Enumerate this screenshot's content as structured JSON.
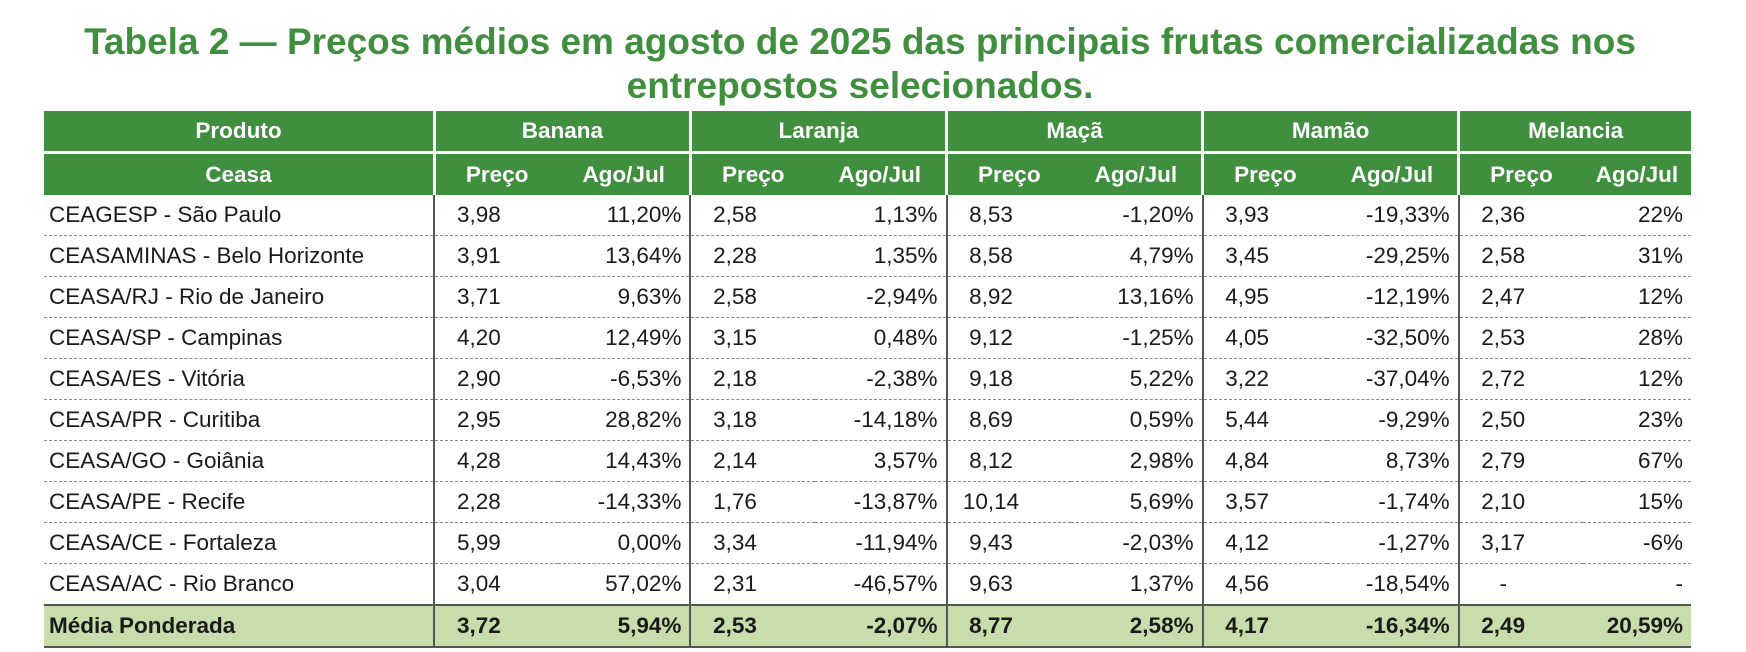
{
  "title": "Tabela 2 — Preços médios em agosto de 2025 das principais frutas comercializadas nos entrepostos selecionados.",
  "table": {
    "header_product": "Produto",
    "header_ceasa": "Ceasa",
    "products": [
      "Banana",
      "Laranja",
      "Maçã",
      "Mamão",
      "Melancia"
    ],
    "subheaders": {
      "price": "Preço",
      "change": "Ago/Jul"
    },
    "rows": [
      {
        "ceasa": "CEAGESP - São Paulo",
        "values": [
          "3,98",
          "11,20%",
          "2,58",
          "1,13%",
          "8,53",
          "-1,20%",
          "3,93",
          "-19,33%",
          "2,36",
          "22%"
        ]
      },
      {
        "ceasa": "CEASAMINAS - Belo Horizonte",
        "values": [
          "3,91",
          "13,64%",
          "2,28",
          "1,35%",
          "8,58",
          "4,79%",
          "3,45",
          "-29,25%",
          "2,58",
          "31%"
        ]
      },
      {
        "ceasa": "CEASA/RJ - Rio de Janeiro",
        "values": [
          "3,71",
          "9,63%",
          "2,58",
          "-2,94%",
          "8,92",
          "13,16%",
          "4,95",
          "-12,19%",
          "2,47",
          "12%"
        ]
      },
      {
        "ceasa": "CEASA/SP - Campinas",
        "values": [
          "4,20",
          "12,49%",
          "3,15",
          "0,48%",
          "9,12",
          "-1,25%",
          "4,05",
          "-32,50%",
          "2,53",
          "28%"
        ]
      },
      {
        "ceasa": "CEASA/ES - Vitória",
        "values": [
          "2,90",
          "-6,53%",
          "2,18",
          "-2,38%",
          "9,18",
          "5,22%",
          "3,22",
          "-37,04%",
          "2,72",
          "12%"
        ]
      },
      {
        "ceasa": "CEASA/PR - Curitiba",
        "values": [
          "2,95",
          "28,82%",
          "3,18",
          "-14,18%",
          "8,69",
          "0,59%",
          "5,44",
          "-9,29%",
          "2,50",
          "23%"
        ]
      },
      {
        "ceasa": "CEASA/GO - Goiânia",
        "values": [
          "4,28",
          "14,43%",
          "2,14",
          "3,57%",
          "8,12",
          "2,98%",
          "4,84",
          "8,73%",
          "2,79",
          "67%"
        ]
      },
      {
        "ceasa": "CEASA/PE - Recife",
        "values": [
          "2,28",
          "-14,33%",
          "1,76",
          "-13,87%",
          "10,14",
          "5,69%",
          "3,57",
          "-1,74%",
          "2,10",
          "15%"
        ]
      },
      {
        "ceasa": "CEASA/CE - Fortaleza",
        "values": [
          "5,99",
          "0,00%",
          "3,34",
          "-11,94%",
          "9,43",
          "-2,03%",
          "4,12",
          "-1,27%",
          "3,17",
          "-6%"
        ]
      },
      {
        "ceasa": "CEASA/AC - Rio Branco",
        "values": [
          "3,04",
          "57,02%",
          "2,31",
          "-46,57%",
          "9,63",
          "1,37%",
          "4,56",
          "-18,54%",
          "-",
          "-"
        ]
      }
    ],
    "average": {
      "label": "Média Ponderada",
      "values": [
        "3,72",
        "5,94%",
        "2,53",
        "-2,07%",
        "8,77",
        "2,58%",
        "4,17",
        "-16,34%",
        "2,49",
        "20,59%"
      ]
    }
  }
}
